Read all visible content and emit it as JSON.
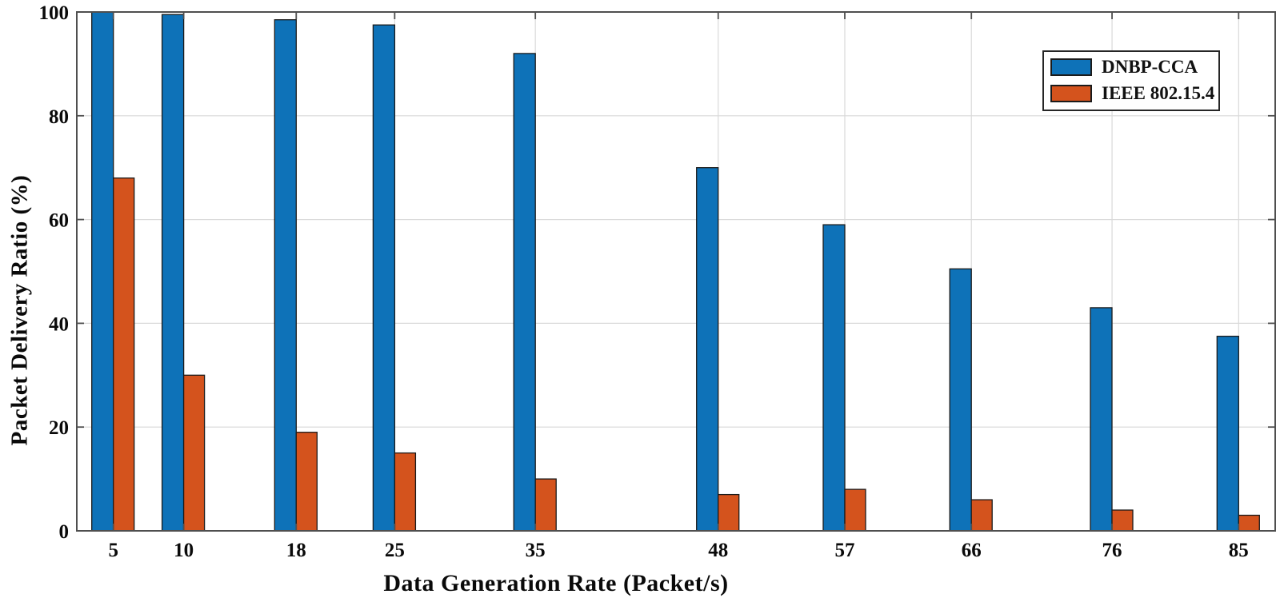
{
  "figure": {
    "background": "#ffffff"
  },
  "chart_data": {
    "type": "bar",
    "title": "",
    "xlabel": "Data Generation Rate (Packet/s)",
    "ylabel": "Packet Delivery Ratio (%)",
    "categories": [
      5,
      10,
      18,
      25,
      35,
      48,
      57,
      66,
      76,
      85
    ],
    "series": [
      {
        "name": "DNBP-CCA",
        "color": "#0e72b8",
        "values": [
          100,
          99.5,
          98.5,
          97.5,
          92,
          70,
          59,
          50.5,
          43,
          37.5
        ]
      },
      {
        "name": "IEEE 802.15.4",
        "color": "#d4531d",
        "values": [
          68,
          30,
          19,
          15,
          10,
          7,
          8,
          6,
          4,
          3
        ]
      }
    ],
    "ylim": [
      0,
      100
    ],
    "yticks": [
      0,
      20,
      40,
      60,
      80,
      100
    ],
    "xlim": [
      2.4,
      87.6
    ],
    "grid": true,
    "legend_position": "upper-right",
    "colors": {
      "bar_edge": "#1b1b1b",
      "grid": "#d9d9d9",
      "axis": "#4f4f4f",
      "tick_label": "#0a0a0a"
    }
  }
}
